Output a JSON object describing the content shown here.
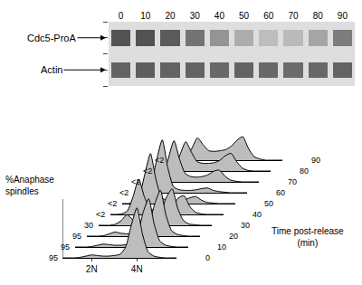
{
  "chart_data": [
    {
      "type": "heatmap",
      "categories": [
        "0",
        "10",
        "20",
        "30",
        "40",
        "50",
        "60",
        "70",
        "80",
        "90"
      ],
      "rows": [
        {
          "label": "Cdc5-ProA",
          "values": [
            0.85,
            0.85,
            0.8,
            0.65,
            0.45,
            0.3,
            0.2,
            0.22,
            0.35,
            0.6
          ]
        },
        {
          "label": "Actin",
          "values": [
            0.75,
            0.78,
            0.75,
            0.75,
            0.72,
            0.75,
            0.72,
            0.7,
            0.72,
            0.75
          ]
        }
      ],
      "color_range": [
        0,
        1
      ]
    },
    {
      "type": "area",
      "x": [
        0,
        10,
        20,
        30,
        40,
        50,
        60,
        70,
        80,
        90,
        100,
        110,
        120,
        130,
        140,
        150,
        160,
        170,
        180,
        190,
        200
      ],
      "xlim": [
        0,
        200
      ],
      "xticks": [
        {
          "value": 50,
          "label": "2N"
        },
        {
          "value": 130,
          "label": "4N"
        }
      ],
      "ylim": [
        0,
        100
      ],
      "tick_labels": "x",
      "color": "#bdbdbd",
      "labels": {
        "anaphase": "%Anaphase spindles",
        "time": "Time post-release (min)"
      },
      "series": [
        {
          "name": "0",
          "anaphase_spindles": "95",
          "values": [
            0,
            0,
            0,
            1,
            3,
            5,
            4,
            3,
            3,
            4,
            6,
            18,
            55,
            85,
            40,
            10,
            3,
            1,
            0,
            0,
            0
          ]
        },
        {
          "name": "10",
          "anaphase_spindles": "95",
          "values": [
            0,
            0,
            0,
            1,
            3,
            5,
            4,
            3,
            3,
            4,
            7,
            20,
            58,
            82,
            38,
            10,
            3,
            1,
            0,
            0,
            0
          ]
        },
        {
          "name": "20",
          "anaphase_spindles": "95",
          "values": [
            0,
            0,
            0,
            1,
            4,
            7,
            5,
            4,
            4,
            5,
            8,
            22,
            55,
            78,
            35,
            9,
            3,
            1,
            0,
            0,
            0
          ]
        },
        {
          "name": "30",
          "anaphase_spindles": "30",
          "values": [
            0,
            0,
            0,
            2,
            8,
            18,
            10,
            6,
            5,
            6,
            9,
            22,
            48,
            62,
            28,
            8,
            2,
            1,
            0,
            0,
            0
          ]
        },
        {
          "name": "40",
          "anaphase_spindles": "<2",
          "values": [
            0,
            0,
            1,
            6,
            30,
            60,
            30,
            10,
            6,
            6,
            7,
            14,
            28,
            32,
            14,
            4,
            1,
            0,
            0,
            0,
            0
          ]
        },
        {
          "name": "50",
          "anaphase_spindles": "<2",
          "values": [
            0,
            0,
            2,
            12,
            50,
            85,
            40,
            10,
            5,
            4,
            4,
            6,
            10,
            12,
            6,
            2,
            1,
            0,
            0,
            0,
            0
          ]
        },
        {
          "name": "60",
          "anaphase_spindles": "<2",
          "values": [
            0,
            0,
            2,
            14,
            55,
            90,
            42,
            10,
            5,
            4,
            4,
            5,
            7,
            8,
            4,
            2,
            1,
            0,
            0,
            0,
            0
          ]
        },
        {
          "name": "70",
          "anaphase_spindles": "<2",
          "values": [
            0,
            0,
            2,
            10,
            40,
            70,
            38,
            14,
            9,
            8,
            9,
            12,
            18,
            20,
            10,
            3,
            1,
            0,
            0,
            0,
            0
          ]
        },
        {
          "name": "80",
          "anaphase_spindles": "<2",
          "values": [
            0,
            0,
            1,
            7,
            28,
            50,
            32,
            16,
            13,
            13,
            14,
            18,
            26,
            30,
            16,
            5,
            1,
            0,
            0,
            0,
            0
          ]
        },
        {
          "name": "90",
          "anaphase_spindles": "<2",
          "values": [
            0,
            0,
            1,
            5,
            20,
            38,
            26,
            16,
            15,
            16,
            18,
            24,
            34,
            40,
            20,
            6,
            2,
            0,
            0,
            0,
            0
          ]
        }
      ]
    }
  ]
}
